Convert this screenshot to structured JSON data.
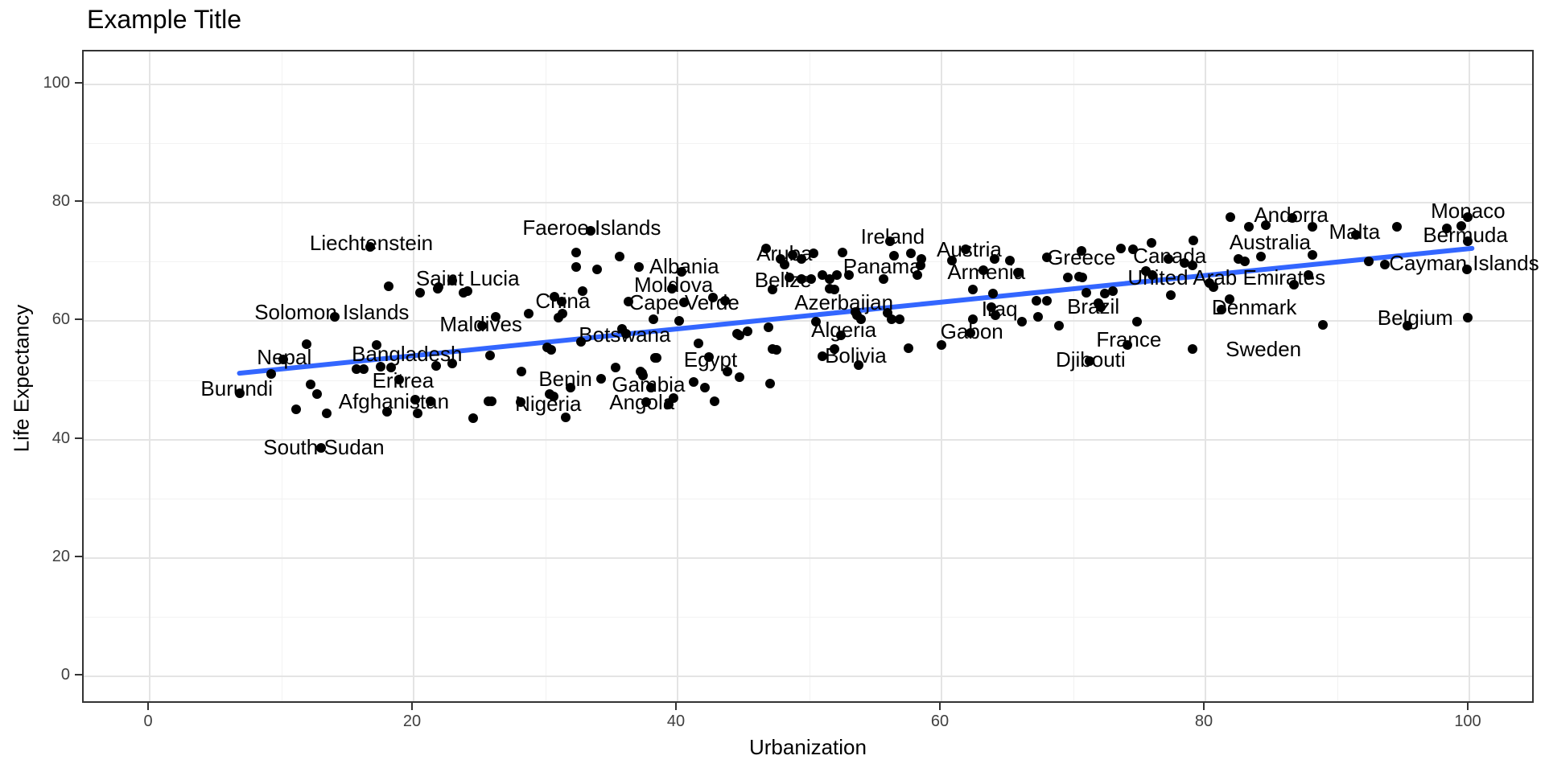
{
  "chart_data": {
    "type": "scatter",
    "title": "Example Title",
    "xlabel": "Urbanization",
    "ylabel": "Life Expectancy",
    "xlim": [
      -5,
      105
    ],
    "ylim": [
      -5,
      106
    ],
    "grid": "major+minor",
    "legend": "none",
    "x_ticks": [
      0,
      20,
      40,
      60,
      80,
      100
    ],
    "x_minor_ticks": [
      10,
      30,
      50,
      70,
      90
    ],
    "y_ticks": [
      0,
      20,
      40,
      60,
      80,
      100
    ],
    "y_minor_ticks": [
      10,
      30,
      50,
      70,
      90
    ],
    "colors": {
      "point": "#000000",
      "label_text": "#000000",
      "trend_line": "#3366FF",
      "grid_major": "#e4e4e4",
      "grid_minor": "#f2f2f2",
      "panel_border": "#333333",
      "tick_text": "#404040",
      "background": "#ffffff"
    },
    "trend": {
      "type": "linear-fit",
      "x1": 6.8,
      "y1": 51.2,
      "x2": 100.2,
      "y2": 72.3
    },
    "labeled_points": [
      {
        "name": "Burundi",
        "x": 6.8,
        "y": 47.8,
        "lx": 6.6,
        "ly": 48.6
      },
      {
        "name": "Nepal",
        "x": 10.1,
        "y": 53.6,
        "lx": 10.2,
        "ly": 53.9
      },
      {
        "name": "Solomon Islands",
        "x": 14.0,
        "y": 60.8,
        "lx": 13.8,
        "ly": 61.5
      },
      {
        "name": "Liechtenstein",
        "x": 16.7,
        "y": 72.6,
        "lx": 16.8,
        "ly": 73.2
      },
      {
        "name": "South Sudan",
        "x": 13.0,
        "y": 38.6,
        "lx": 13.2,
        "ly": 38.7
      },
      {
        "name": "Afghanistan",
        "x": 21.3,
        "y": 46.5,
        "lx": 18.5,
        "ly": 46.4
      },
      {
        "name": "Eritrea",
        "x": 18.9,
        "y": 50.2,
        "lx": 19.2,
        "ly": 50.0
      },
      {
        "name": "Bangladesh",
        "x": 17.5,
        "y": 52.3,
        "lx": 19.5,
        "ly": 54.5
      },
      {
        "name": "Saint Lucia",
        "x": 22.9,
        "y": 66.8,
        "lx": 24.1,
        "ly": 67.3
      },
      {
        "name": "Maldives",
        "x": 25.2,
        "y": 59.2,
        "lx": 25.1,
        "ly": 59.5
      },
      {
        "name": "China",
        "x": 31.2,
        "y": 63.3,
        "lx": 31.3,
        "ly": 63.4
      },
      {
        "name": "Benin",
        "x": 34.2,
        "y": 50.3,
        "lx": 31.5,
        "ly": 50.3
      },
      {
        "name": "Nigeria",
        "x": 28.1,
        "y": 46.3,
        "lx": 30.2,
        "ly": 46.1
      },
      {
        "name": "Faeroe Islands",
        "x": 33.4,
        "y": 75.3,
        "lx": 33.5,
        "ly": 75.8
      },
      {
        "name": "Botswana",
        "x": 36.1,
        "y": 57.9,
        "lx": 36.0,
        "ly": 57.7
      },
      {
        "name": "Gambia",
        "x": 38.0,
        "y": 48.8,
        "lx": 37.8,
        "ly": 49.3
      },
      {
        "name": "Angola",
        "x": 37.6,
        "y": 46.3,
        "lx": 37.3,
        "ly": 46.3
      },
      {
        "name": "Albania",
        "x": 40.3,
        "y": 68.3,
        "lx": 40.5,
        "ly": 69.3
      },
      {
        "name": "Moldova",
        "x": 39.6,
        "y": 65.5,
        "lx": 39.7,
        "ly": 66.2
      },
      {
        "name": "Cape Verde",
        "x": 40.5,
        "y": 63.2,
        "lx": 40.5,
        "ly": 63.2
      },
      {
        "name": "Egypt",
        "x": 42.4,
        "y": 53.9,
        "lx": 42.5,
        "ly": 53.5
      },
      {
        "name": "Aruba",
        "x": 46.7,
        "y": 72.3,
        "lx": 48.1,
        "ly": 71.4
      },
      {
        "name": "Belize",
        "x": 49.4,
        "y": 67.1,
        "lx": 48.0,
        "ly": 67.0
      },
      {
        "name": "Azerbaijan",
        "x": 53.5,
        "y": 61.5,
        "lx": 52.6,
        "ly": 63.2
      },
      {
        "name": "Algeria",
        "x": 52.4,
        "y": 57.6,
        "lx": 52.6,
        "ly": 58.6
      },
      {
        "name": "Bolivia",
        "x": 51.9,
        "y": 55.3,
        "lx": 53.5,
        "ly": 54.2
      },
      {
        "name": "Ireland",
        "x": 56.1,
        "y": 73.5,
        "lx": 56.3,
        "ly": 74.3
      },
      {
        "name": "Panama",
        "x": 58.4,
        "y": 69.4,
        "lx": 55.5,
        "ly": 69.3
      },
      {
        "name": "Austria",
        "x": 60.8,
        "y": 70.3,
        "lx": 62.1,
        "ly": 72.1
      },
      {
        "name": "Armenia",
        "x": 63.2,
        "y": 68.6,
        "lx": 63.4,
        "ly": 68.3
      },
      {
        "name": "Gabon",
        "x": 62.2,
        "y": 58.0,
        "lx": 62.3,
        "ly": 58.3
      },
      {
        "name": "Iraq",
        "x": 63.8,
        "y": 62.3,
        "lx": 64.4,
        "ly": 62.1
      },
      {
        "name": "Greece",
        "x": 68.0,
        "y": 70.8,
        "lx": 70.6,
        "ly": 70.8
      },
      {
        "name": "Brazil",
        "x": 72.1,
        "y": 62.3,
        "lx": 71.5,
        "ly": 62.5
      },
      {
        "name": "Djibouti",
        "x": 71.2,
        "y": 53.3,
        "lx": 71.3,
        "ly": 53.5
      },
      {
        "name": "Canada",
        "x": 77.2,
        "y": 70.5,
        "lx": 77.3,
        "ly": 71.1
      },
      {
        "name": "United Arab Emirates",
        "x": 76.0,
        "y": 67.8,
        "lx": 81.6,
        "ly": 67.4
      },
      {
        "name": "France",
        "x": 74.1,
        "y": 56.0,
        "lx": 74.2,
        "ly": 56.9
      },
      {
        "name": "Denmark",
        "x": 81.8,
        "y": 63.7,
        "lx": 83.7,
        "ly": 62.4
      },
      {
        "name": "Sweden",
        "x": 79.0,
        "y": 55.3,
        "lx": 84.4,
        "ly": 55.3
      },
      {
        "name": "Andorra",
        "x": 86.6,
        "y": 77.4,
        "lx": 86.5,
        "ly": 78.0
      },
      {
        "name": "Australia",
        "x": 84.6,
        "y": 76.2,
        "lx": 84.9,
        "ly": 73.4
      },
      {
        "name": "Malta",
        "x": 91.4,
        "y": 74.6,
        "lx": 91.3,
        "ly": 75.1
      },
      {
        "name": "Monaco",
        "x": 99.9,
        "y": 77.6,
        "lx": 99.9,
        "ly": 78.7
      },
      {
        "name": "Bermuda",
        "x": 99.9,
        "y": 73.5,
        "lx": 99.7,
        "ly": 74.6
      },
      {
        "name": "Cayman Islands",
        "x": 99.8,
        "y": 68.7,
        "lx": 99.6,
        "ly": 69.8
      },
      {
        "name": "Belgium",
        "x": 99.9,
        "y": 60.6,
        "lx": 95.9,
        "ly": 60.6
      }
    ],
    "points": [
      [
        9.2,
        51.1
      ],
      [
        11.9,
        56.1
      ],
      [
        12.2,
        49.3
      ],
      [
        12.7,
        47.7
      ],
      [
        11.1,
        45.1
      ],
      [
        13.4,
        44.4
      ],
      [
        18.0,
        44.7
      ],
      [
        20.3,
        44.4
      ],
      [
        24.5,
        43.6
      ],
      [
        25.7,
        46.5
      ],
      [
        18.1,
        65.9
      ],
      [
        20.5,
        64.8
      ],
      [
        21.8,
        65.5
      ],
      [
        23.8,
        64.8
      ],
      [
        24.1,
        65.1
      ],
      [
        21.9,
        65.8
      ],
      [
        17.2,
        56.0
      ],
      [
        25.8,
        54.2
      ],
      [
        15.7,
        51.9
      ],
      [
        16.2,
        51.9
      ],
      [
        18.3,
        52.2
      ],
      [
        21.7,
        52.4
      ],
      [
        22.9,
        52.8
      ],
      [
        20.1,
        46.7
      ],
      [
        28.2,
        51.5
      ],
      [
        25.9,
        46.4
      ],
      [
        30.3,
        47.7
      ],
      [
        30.6,
        47.3
      ],
      [
        31.9,
        48.8
      ],
      [
        31.5,
        43.8
      ],
      [
        35.3,
        52.2
      ],
      [
        37.2,
        51.5
      ],
      [
        37.4,
        50.8
      ],
      [
        38.4,
        53.8
      ],
      [
        39.7,
        47.0
      ],
      [
        42.1,
        48.8
      ],
      [
        30.1,
        55.6
      ],
      [
        30.4,
        55.1
      ],
      [
        32.7,
        56.5
      ],
      [
        35.8,
        58.7
      ],
      [
        28.7,
        61.3
      ],
      [
        31.0,
        60.6
      ],
      [
        31.3,
        61.3
      ],
      [
        30.7,
        64.1
      ],
      [
        32.8,
        65.1
      ],
      [
        33.9,
        68.8
      ],
      [
        32.3,
        69.2
      ],
      [
        32.3,
        71.6
      ],
      [
        35.6,
        70.9
      ],
      [
        37.1,
        69.2
      ],
      [
        36.3,
        63.3
      ],
      [
        26.2,
        60.8
      ],
      [
        42.7,
        64.0
      ],
      [
        43.6,
        63.5
      ],
      [
        45.3,
        58.3
      ],
      [
        44.5,
        57.9
      ],
      [
        46.9,
        59.0
      ],
      [
        47.2,
        55.3
      ],
      [
        41.6,
        56.2
      ],
      [
        44.7,
        57.6
      ],
      [
        47.5,
        55.1
      ],
      [
        38.3,
        53.8
      ],
      [
        37.3,
        51.2
      ],
      [
        41.2,
        49.7
      ],
      [
        44.7,
        50.5
      ],
      [
        47.0,
        49.5
      ],
      [
        43.8,
        51.5
      ],
      [
        40.1,
        60.1
      ],
      [
        38.2,
        60.3
      ],
      [
        39.3,
        45.9
      ],
      [
        42.8,
        46.4
      ],
      [
        47.8,
        70.5
      ],
      [
        48.1,
        69.6
      ],
      [
        48.7,
        71.2
      ],
      [
        49.4,
        70.5
      ],
      [
        50.3,
        71.5
      ],
      [
        50.1,
        67.1
      ],
      [
        48.5,
        67.4
      ],
      [
        47.2,
        65.4
      ],
      [
        51.0,
        67.8
      ],
      [
        51.5,
        67.1
      ],
      [
        51.5,
        65.5
      ],
      [
        50.5,
        59.9
      ],
      [
        52.5,
        71.6
      ],
      [
        52.1,
        67.8
      ],
      [
        53.0,
        67.8
      ],
      [
        56.4,
        71.0
      ],
      [
        57.7,
        71.4
      ],
      [
        58.5,
        70.5
      ],
      [
        58.2,
        67.8
      ],
      [
        55.6,
        67.1
      ],
      [
        51.9,
        65.4
      ],
      [
        53.6,
        61.0
      ],
      [
        53.9,
        60.3
      ],
      [
        55.9,
        61.4
      ],
      [
        56.2,
        60.3
      ],
      [
        56.8,
        60.3
      ],
      [
        61.8,
        72.1
      ],
      [
        64.0,
        70.5
      ],
      [
        65.2,
        70.2
      ],
      [
        65.8,
        68.2
      ],
      [
        62.4,
        65.4
      ],
      [
        63.9,
        64.7
      ],
      [
        62.4,
        60.3
      ],
      [
        64.1,
        61.0
      ],
      [
        66.1,
        59.9
      ],
      [
        67.2,
        63.5
      ],
      [
        68.0,
        63.5
      ],
      [
        67.3,
        60.8
      ],
      [
        68.9,
        59.2
      ],
      [
        69.6,
        67.4
      ],
      [
        70.4,
        67.5
      ],
      [
        70.6,
        71.9
      ],
      [
        53.7,
        52.6
      ],
      [
        51.0,
        54.1
      ],
      [
        57.5,
        55.5
      ],
      [
        60.0,
        56.0
      ],
      [
        73.6,
        72.3
      ],
      [
        74.5,
        72.1
      ],
      [
        79.1,
        73.7
      ],
      [
        78.4,
        69.9
      ],
      [
        82.5,
        70.5
      ],
      [
        83.0,
        70.1
      ],
      [
        75.5,
        68.5
      ],
      [
        79.0,
        69.4
      ],
      [
        70.7,
        67.4
      ],
      [
        71.0,
        64.8
      ],
      [
        72.4,
        64.7
      ],
      [
        73.0,
        65.1
      ],
      [
        77.4,
        64.4
      ],
      [
        80.3,
        66.4
      ],
      [
        80.6,
        65.8
      ],
      [
        71.9,
        63.0
      ],
      [
        74.8,
        59.9
      ],
      [
        81.2,
        61.9
      ],
      [
        84.2,
        70.9
      ],
      [
        87.8,
        67.8
      ],
      [
        86.7,
        66.2
      ],
      [
        88.9,
        59.4
      ],
      [
        95.3,
        59.2
      ],
      [
        88.1,
        71.2
      ],
      [
        81.9,
        77.6
      ],
      [
        75.9,
        73.2
      ],
      [
        83.3,
        76.0
      ],
      [
        88.1,
        75.9
      ],
      [
        94.5,
        76.0
      ],
      [
        98.3,
        75.7
      ],
      [
        99.4,
        76.1
      ],
      [
        92.4,
        70.1
      ],
      [
        93.6,
        69.6
      ]
    ]
  }
}
